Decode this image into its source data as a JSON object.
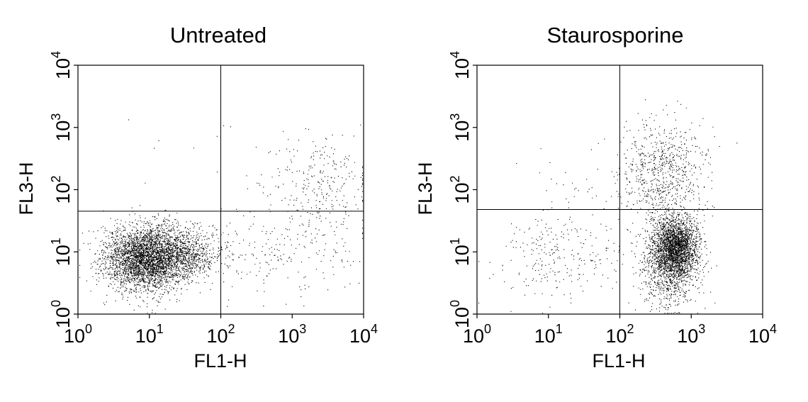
{
  "chart_data": [
    {
      "type": "scatter",
      "title": "Untreated",
      "xlabel": "FL1-H",
      "ylabel": "FL3-H",
      "x_scale": "log",
      "y_scale": "log",
      "xlim": [
        1,
        10000
      ],
      "ylim": [
        1,
        10000
      ],
      "x_ticks": [
        {
          "base": "10",
          "exp": "0"
        },
        {
          "base": "10",
          "exp": "1"
        },
        {
          "base": "10",
          "exp": "2"
        },
        {
          "base": "10",
          "exp": "3"
        },
        {
          "base": "10",
          "exp": "4"
        }
      ],
      "y_ticks": [
        {
          "base": "10",
          "exp": "0"
        },
        {
          "base": "10",
          "exp": "1"
        },
        {
          "base": "10",
          "exp": "2"
        },
        {
          "base": "10",
          "exp": "3"
        },
        {
          "base": "10",
          "exp": "4"
        }
      ],
      "quadrant_gate": {
        "x": 100,
        "y": 45
      },
      "grid": false,
      "populations": [
        {
          "center_x": 9,
          "center_y": 8,
          "spread_log_x": 0.3,
          "spread_log_y": 0.26,
          "count": 3400
        },
        {
          "center_x": 28,
          "center_y": 9,
          "spread_log_x": 0.32,
          "spread_log_y": 0.2,
          "count": 900
        },
        {
          "center_x": 600,
          "center_y": 10,
          "spread_log_x": 0.6,
          "spread_log_y": 0.4,
          "count": 220
        },
        {
          "center_x": 2500,
          "center_y": 130,
          "spread_log_x": 0.38,
          "spread_log_y": 0.38,
          "count": 260
        },
        {
          "center_x": 30,
          "center_y": 300,
          "spread_log_x": 0.6,
          "spread_log_y": 0.5,
          "count": 10
        }
      ]
    },
    {
      "type": "scatter",
      "title": "Staurosporine",
      "xlabel": "FL1-H",
      "ylabel": "FL3-H",
      "x_scale": "log",
      "y_scale": "log",
      "xlim": [
        1,
        10000
      ],
      "ylim": [
        1,
        10000
      ],
      "x_ticks": [
        {
          "base": "10",
          "exp": "0"
        },
        {
          "base": "10",
          "exp": "1"
        },
        {
          "base": "10",
          "exp": "2"
        },
        {
          "base": "10",
          "exp": "3"
        },
        {
          "base": "10",
          "exp": "4"
        }
      ],
      "y_ticks": [
        {
          "base": "10",
          "exp": "0"
        },
        {
          "base": "10",
          "exp": "1"
        },
        {
          "base": "10",
          "exp": "2"
        },
        {
          "base": "10",
          "exp": "3"
        },
        {
          "base": "10",
          "exp": "4"
        }
      ],
      "quadrant_gate": {
        "x": 100,
        "y": 48
      },
      "grid": false,
      "populations": [
        {
          "center_x": 580,
          "center_y": 12,
          "spread_log_x": 0.16,
          "spread_log_y": 0.24,
          "count": 2600
        },
        {
          "center_x": 480,
          "center_y": 4,
          "spread_log_x": 0.2,
          "spread_log_y": 0.28,
          "count": 600
        },
        {
          "center_x": 380,
          "center_y": 170,
          "spread_log_x": 0.3,
          "spread_log_y": 0.45,
          "count": 800
        },
        {
          "center_x": 15,
          "center_y": 9,
          "spread_log_x": 0.45,
          "spread_log_y": 0.35,
          "count": 260
        },
        {
          "center_x": 30,
          "center_y": 150,
          "spread_log_x": 0.45,
          "spread_log_y": 0.35,
          "count": 25
        }
      ]
    }
  ]
}
